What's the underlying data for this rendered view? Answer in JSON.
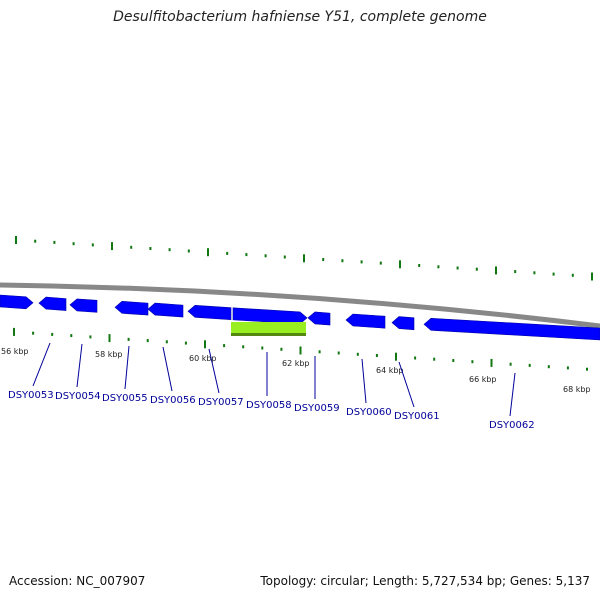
{
  "title": "Desulfitobacterium hafniense Y51, complete genome",
  "footer": {
    "accession": "Accession: NC_007907",
    "summary": "Topology: circular; Length: 5,727,534 bp; Genes: 5,137"
  },
  "colors": {
    "gene": "#0000ff",
    "highlight": "#99ee22",
    "backbone": "#888888",
    "tick": "#117711",
    "label": "#000099"
  },
  "ticks": [
    "56 kbp",
    "58 kbp",
    "60 kbp",
    "62 kbp",
    "64 kbp",
    "66 kbp",
    "68 kbp"
  ],
  "genes": [
    "DSY0053",
    "DSY0054",
    "DSY0055",
    "DSY0056",
    "DSY0057",
    "DSY0058",
    "DSY0059",
    "DSY0060",
    "DSY0061",
    "DSY0062"
  ]
}
